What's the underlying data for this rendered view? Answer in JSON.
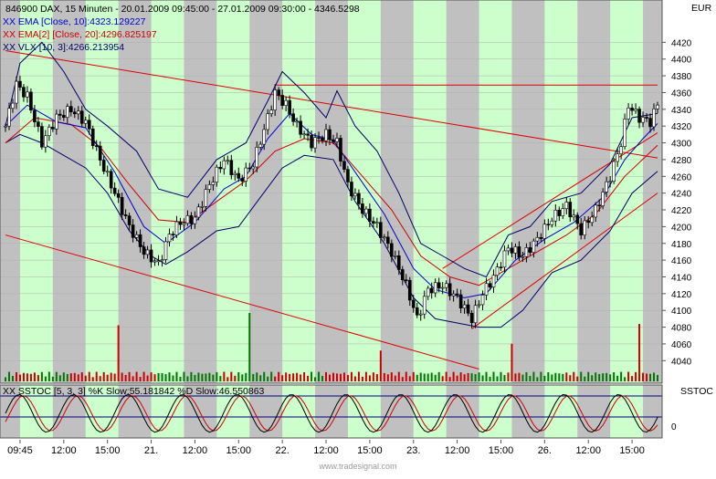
{
  "chart_data": {
    "type": "line",
    "title": "846900  DAX, 15 Minuten - 20.01.2009 09:45:00 - 27.01.2009 09:30:00 - 4346.5298",
    "currency_label": "EUR",
    "indicators": [
      {
        "name": "XX EMA [Close, 10]:4323.129227",
        "color": "#0000cc"
      },
      {
        "name": "XX EMA[2] [Close, 20]:4296.825197",
        "color": "#cc0000"
      },
      {
        "name": "XX VLX [10, 3]:4266.213954",
        "color": "#000066"
      }
    ],
    "y_ticks": [
      4040,
      4060,
      4080,
      4100,
      4120,
      4140,
      4160,
      4180,
      4200,
      4220,
      4240,
      4260,
      4280,
      4300,
      4320,
      4340,
      4360,
      4380,
      4400,
      4420
    ],
    "ylim": [
      4024,
      4440
    ],
    "x_ticks": [
      "09:45",
      "12:00",
      "15:00",
      "21.",
      "12:00",
      "15:00",
      "22.",
      "12:00",
      "15:00",
      "23.",
      "12:00",
      "15:00",
      "26.",
      "12:00",
      "15:00"
    ],
    "n_bars": 180,
    "close_series": [
      {
        "bar": 0,
        "value": 4320
      },
      {
        "bar": 3,
        "value": 4370
      },
      {
        "bar": 6,
        "value": 4355
      },
      {
        "bar": 10,
        "value": 4300
      },
      {
        "bar": 14,
        "value": 4330
      },
      {
        "bar": 18,
        "value": 4340
      },
      {
        "bar": 22,
        "value": 4325
      },
      {
        "bar": 26,
        "value": 4280
      },
      {
        "bar": 30,
        "value": 4240
      },
      {
        "bar": 34,
        "value": 4200
      },
      {
        "bar": 38,
        "value": 4170
      },
      {
        "bar": 42,
        "value": 4155
      },
      {
        "bar": 45,
        "value": 4190
      },
      {
        "bar": 48,
        "value": 4205
      },
      {
        "bar": 52,
        "value": 4210
      },
      {
        "bar": 56,
        "value": 4250
      },
      {
        "bar": 60,
        "value": 4280
      },
      {
        "bar": 64,
        "value": 4255
      },
      {
        "bar": 68,
        "value": 4275
      },
      {
        "bar": 72,
        "value": 4330
      },
      {
        "bar": 74,
        "value": 4360
      },
      {
        "bar": 77,
        "value": 4345
      },
      {
        "bar": 80,
        "value": 4320
      },
      {
        "bar": 84,
        "value": 4300
      },
      {
        "bar": 88,
        "value": 4310
      },
      {
        "bar": 91,
        "value": 4300
      },
      {
        "bar": 94,
        "value": 4250
      },
      {
        "bar": 98,
        "value": 4220
      },
      {
        "bar": 102,
        "value": 4200
      },
      {
        "bar": 106,
        "value": 4170
      },
      {
        "bar": 110,
        "value": 4130
      },
      {
        "bar": 113,
        "value": 4090
      },
      {
        "bar": 116,
        "value": 4125
      },
      {
        "bar": 120,
        "value": 4130
      },
      {
        "bar": 124,
        "value": 4115
      },
      {
        "bar": 128,
        "value": 4090
      },
      {
        "bar": 131,
        "value": 4120
      },
      {
        "bar": 134,
        "value": 4140
      },
      {
        "bar": 138,
        "value": 4175
      },
      {
        "bar": 142,
        "value": 4165
      },
      {
        "bar": 146,
        "value": 4185
      },
      {
        "bar": 150,
        "value": 4210
      },
      {
        "bar": 154,
        "value": 4225
      },
      {
        "bar": 158,
        "value": 4195
      },
      {
        "bar": 162,
        "value": 4220
      },
      {
        "bar": 166,
        "value": 4260
      },
      {
        "bar": 169,
        "value": 4300
      },
      {
        "bar": 171,
        "value": 4345
      },
      {
        "bar": 174,
        "value": 4330
      },
      {
        "bar": 177,
        "value": 4325
      },
      {
        "bar": 179,
        "value": 4346
      }
    ],
    "ema10_series": [
      {
        "bar": 0,
        "value": 4320
      },
      {
        "bar": 6,
        "value": 4345
      },
      {
        "bar": 14,
        "value": 4325
      },
      {
        "bar": 22,
        "value": 4318
      },
      {
        "bar": 30,
        "value": 4265
      },
      {
        "bar": 38,
        "value": 4200
      },
      {
        "bar": 44,
        "value": 4180
      },
      {
        "bar": 52,
        "value": 4205
      },
      {
        "bar": 60,
        "value": 4245
      },
      {
        "bar": 66,
        "value": 4260
      },
      {
        "bar": 72,
        "value": 4305
      },
      {
        "bar": 78,
        "value": 4335
      },
      {
        "bar": 84,
        "value": 4310
      },
      {
        "bar": 90,
        "value": 4303
      },
      {
        "bar": 96,
        "value": 4265
      },
      {
        "bar": 104,
        "value": 4215
      },
      {
        "bar": 112,
        "value": 4150
      },
      {
        "bar": 118,
        "value": 4125
      },
      {
        "bar": 126,
        "value": 4115
      },
      {
        "bar": 132,
        "value": 4120
      },
      {
        "bar": 140,
        "value": 4160
      },
      {
        "bar": 148,
        "value": 4185
      },
      {
        "bar": 156,
        "value": 4205
      },
      {
        "bar": 164,
        "value": 4235
      },
      {
        "bar": 170,
        "value": 4280
      },
      {
        "bar": 175,
        "value": 4305
      },
      {
        "bar": 179,
        "value": 4323
      }
    ],
    "ema20_series": [
      {
        "bar": 0,
        "value": 4300
      },
      {
        "bar": 8,
        "value": 4330
      },
      {
        "bar": 18,
        "value": 4322
      },
      {
        "bar": 26,
        "value": 4295
      },
      {
        "bar": 34,
        "value": 4250
      },
      {
        "bar": 42,
        "value": 4208
      },
      {
        "bar": 50,
        "value": 4205
      },
      {
        "bar": 58,
        "value": 4230
      },
      {
        "bar": 66,
        "value": 4255
      },
      {
        "bar": 74,
        "value": 4290
      },
      {
        "bar": 82,
        "value": 4305
      },
      {
        "bar": 90,
        "value": 4300
      },
      {
        "bar": 98,
        "value": 4260
      },
      {
        "bar": 106,
        "value": 4220
      },
      {
        "bar": 114,
        "value": 4165
      },
      {
        "bar": 122,
        "value": 4140
      },
      {
        "bar": 130,
        "value": 4130
      },
      {
        "bar": 138,
        "value": 4150
      },
      {
        "bar": 146,
        "value": 4170
      },
      {
        "bar": 154,
        "value": 4190
      },
      {
        "bar": 162,
        "value": 4215
      },
      {
        "bar": 170,
        "value": 4260
      },
      {
        "bar": 179,
        "value": 4297
      }
    ],
    "vlx_upper_series": [
      {
        "bar": 0,
        "value": 4320
      },
      {
        "bar": 4,
        "value": 4395
      },
      {
        "bar": 10,
        "value": 4420
      },
      {
        "bar": 16,
        "value": 4385
      },
      {
        "bar": 22,
        "value": 4340
      },
      {
        "bar": 28,
        "value": 4320
      },
      {
        "bar": 36,
        "value": 4290
      },
      {
        "bar": 42,
        "value": 4245
      },
      {
        "bar": 50,
        "value": 4235
      },
      {
        "bar": 58,
        "value": 4280
      },
      {
        "bar": 66,
        "value": 4300
      },
      {
        "bar": 72,
        "value": 4350
      },
      {
        "bar": 76,
        "value": 4385
      },
      {
        "bar": 82,
        "value": 4360
      },
      {
        "bar": 88,
        "value": 4330
      },
      {
        "bar": 91,
        "value": 4362
      },
      {
        "bar": 96,
        "value": 4320
      },
      {
        "bar": 102,
        "value": 4290
      },
      {
        "bar": 108,
        "value": 4240
      },
      {
        "bar": 114,
        "value": 4180
      },
      {
        "bar": 120,
        "value": 4165
      },
      {
        "bar": 126,
        "value": 4150
      },
      {
        "bar": 132,
        "value": 4140
      },
      {
        "bar": 138,
        "value": 4190
      },
      {
        "bar": 144,
        "value": 4200
      },
      {
        "bar": 150,
        "value": 4230
      },
      {
        "bar": 158,
        "value": 4240
      },
      {
        "bar": 166,
        "value": 4275
      },
      {
        "bar": 172,
        "value": 4330
      },
      {
        "bar": 179,
        "value": 4335
      }
    ],
    "vlx_lower_series": [
      {
        "bar": 0,
        "value": 4300
      },
      {
        "bar": 4,
        "value": 4310
      },
      {
        "bar": 10,
        "value": 4300
      },
      {
        "bar": 16,
        "value": 4285
      },
      {
        "bar": 22,
        "value": 4270
      },
      {
        "bar": 28,
        "value": 4240
      },
      {
        "bar": 34,
        "value": 4195
      },
      {
        "bar": 40,
        "value": 4165
      },
      {
        "bar": 44,
        "value": 4155
      },
      {
        "bar": 50,
        "value": 4170
      },
      {
        "bar": 58,
        "value": 4195
      },
      {
        "bar": 64,
        "value": 4200
      },
      {
        "bar": 70,
        "value": 4235
      },
      {
        "bar": 76,
        "value": 4270
      },
      {
        "bar": 82,
        "value": 4285
      },
      {
        "bar": 90,
        "value": 4280
      },
      {
        "bar": 96,
        "value": 4230
      },
      {
        "bar": 104,
        "value": 4180
      },
      {
        "bar": 112,
        "value": 4115
      },
      {
        "bar": 118,
        "value": 4090
      },
      {
        "bar": 124,
        "value": 4085
      },
      {
        "bar": 130,
        "value": 4080
      },
      {
        "bar": 136,
        "value": 4080
      },
      {
        "bar": 142,
        "value": 4100
      },
      {
        "bar": 150,
        "value": 4145
      },
      {
        "bar": 158,
        "value": 4160
      },
      {
        "bar": 166,
        "value": 4195
      },
      {
        "bar": 172,
        "value": 4240
      },
      {
        "bar": 179,
        "value": 4266
      }
    ],
    "trendlines": [
      {
        "x1": 0,
        "y1": 4410,
        "x2": 179,
        "y2": 4282
      },
      {
        "x1": 0,
        "y1": 4190,
        "x2": 130,
        "y2": 4030
      },
      {
        "x1": 74,
        "y1": 4369,
        "x2": 179,
        "y2": 4369
      },
      {
        "x1": 120,
        "y1": 4150,
        "x2": 179,
        "y2": 4312
      },
      {
        "x1": 128,
        "y1": 4078,
        "x2": 179,
        "y2": 4240
      }
    ],
    "volume_spikes": [
      {
        "bar": 31,
        "level": 0.82
      },
      {
        "bar": 67,
        "level": 1.0
      },
      {
        "bar": 103,
        "level": 0.45
      },
      {
        "bar": 139,
        "level": 0.55
      },
      {
        "bar": 174,
        "level": 0.84
      }
    ],
    "stoch_panel": {
      "label": "XX SSTOC [5, 3, 3] %K Slow:55.181842 %D Slow:46.550863",
      "title": "SSTOC",
      "y_ticks": [
        0
      ]
    },
    "watermark": "www.tradesignal.com"
  }
}
